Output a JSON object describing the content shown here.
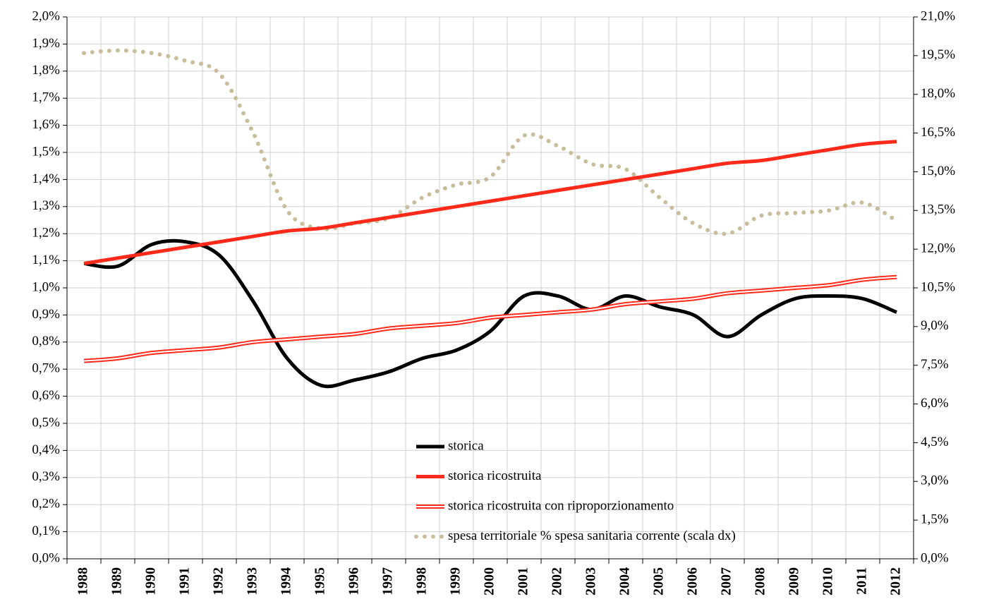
{
  "chart_data": {
    "type": "line",
    "categories": [
      "1988",
      "1989",
      "1990",
      "1991",
      "1992",
      "1993",
      "1994",
      "1995",
      "1996",
      "1997",
      "1998",
      "1999",
      "2000",
      "2001",
      "2002",
      "2003",
      "2004",
      "2005",
      "2006",
      "2007",
      "2008",
      "2009",
      "2010",
      "2011",
      "2012"
    ],
    "series": [
      {
        "name": "storica",
        "color": "#000000",
        "line_style": "solid",
        "values": [
          1.09,
          1.08,
          1.16,
          1.17,
          1.12,
          0.95,
          0.74,
          0.64,
          0.66,
          0.69,
          0.74,
          0.77,
          0.84,
          0.97,
          0.97,
          0.92,
          0.97,
          0.93,
          0.9,
          0.82,
          0.9,
          0.96,
          0.97,
          0.96,
          0.91
        ]
      },
      {
        "name": "storica ricostruita",
        "color": "#ff2a1a",
        "line_style": "solid",
        "values": [
          1.09,
          1.11,
          1.13,
          1.15,
          1.17,
          1.19,
          1.21,
          1.22,
          1.24,
          1.26,
          1.28,
          1.3,
          1.32,
          1.34,
          1.36,
          1.38,
          1.4,
          1.42,
          1.44,
          1.46,
          1.47,
          1.49,
          1.51,
          1.53,
          1.54
        ]
      },
      {
        "name": "storica ricostruita con riproporzionamento",
        "color": "#ff2a1a",
        "line_style": "double",
        "values": [
          0.73,
          0.74,
          0.76,
          0.77,
          0.78,
          0.8,
          0.81,
          0.82,
          0.83,
          0.85,
          0.86,
          0.87,
          0.89,
          0.9,
          0.91,
          0.92,
          0.94,
          0.95,
          0.96,
          0.98,
          0.99,
          1.0,
          1.01,
          1.03,
          1.04
        ]
      },
      {
        "name": "spesa territoriale % spesa sanitaria corrente (scala dx)",
        "color": "#c9bd9b",
        "line_style": "dotted",
        "axis": "y2",
        "values": [
          19.6,
          19.7,
          19.6,
          19.3,
          18.8,
          16.5,
          13.5,
          12.8,
          13.0,
          13.2,
          14.0,
          14.5,
          14.8,
          16.4,
          16.0,
          15.3,
          15.1,
          14.0,
          13.0,
          12.6,
          13.3,
          13.4,
          13.5,
          13.8,
          13.1
        ]
      }
    ],
    "ylim": [
      0,
      2
    ],
    "yticks": [
      {
        "value": 0,
        "label": "0,0%"
      },
      {
        "value": 0.1,
        "label": "0,1%"
      },
      {
        "value": 0.2,
        "label": "0,2%"
      },
      {
        "value": 0.3,
        "label": "0,3%"
      },
      {
        "value": 0.4,
        "label": "0,4%"
      },
      {
        "value": 0.5,
        "label": "0,5%"
      },
      {
        "value": 0.6,
        "label": "0,6%"
      },
      {
        "value": 0.7,
        "label": "0,7%"
      },
      {
        "value": 0.8,
        "label": "0,8%"
      },
      {
        "value": 0.9,
        "label": "0,9%"
      },
      {
        "value": 1.0,
        "label": "1,0%"
      },
      {
        "value": 1.1,
        "label": "1,1%"
      },
      {
        "value": 1.2,
        "label": "1,2%"
      },
      {
        "value": 1.3,
        "label": "1,3%"
      },
      {
        "value": 1.4,
        "label": "1,4%"
      },
      {
        "value": 1.5,
        "label": "1,5%"
      },
      {
        "value": 1.6,
        "label": "1,6%"
      },
      {
        "value": 1.7,
        "label": "1,7%"
      },
      {
        "value": 1.8,
        "label": "1,8%"
      },
      {
        "value": 1.9,
        "label": "1,9%"
      },
      {
        "value": 2.0,
        "label": "2,0%"
      }
    ],
    "y2lim": [
      0,
      21
    ],
    "y2ticks": [
      {
        "value": 0,
        "label": "0,0%"
      },
      {
        "value": 1.5,
        "label": "1,5%"
      },
      {
        "value": 3,
        "label": "3,0%"
      },
      {
        "value": 4.5,
        "label": "4,5%"
      },
      {
        "value": 6,
        "label": "6,0%"
      },
      {
        "value": 7.5,
        "label": "7,5%"
      },
      {
        "value": 9,
        "label": "9,0%"
      },
      {
        "value": 10.5,
        "label": "10,5%"
      },
      {
        "value": 12,
        "label": "12,0%"
      },
      {
        "value": 13.5,
        "label": "13,5%"
      },
      {
        "value": 15,
        "label": "15,0%"
      },
      {
        "value": 16.5,
        "label": "16,5%"
      },
      {
        "value": 18,
        "label": "18,0%"
      },
      {
        "value": 19.5,
        "label": "19,5%"
      },
      {
        "value": 21,
        "label": "21,0%"
      }
    ],
    "grid": true,
    "legend": "lower center"
  }
}
